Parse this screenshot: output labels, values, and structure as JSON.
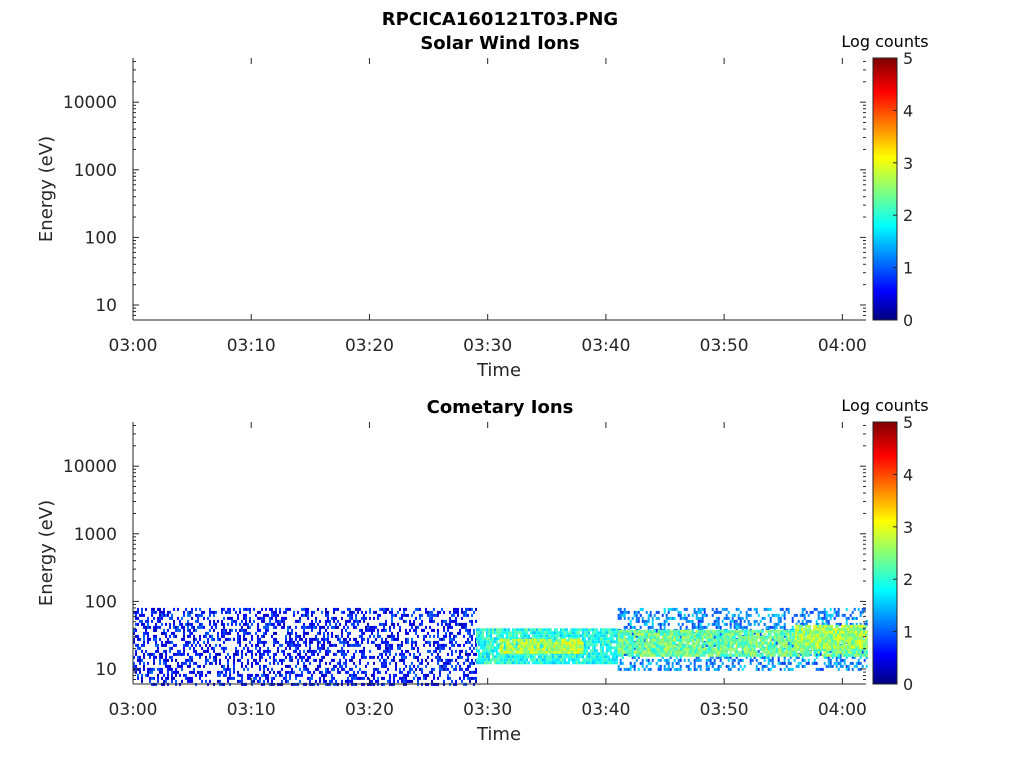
{
  "figure": {
    "title": "RPCICA160121T03.PNG"
  },
  "colormap": "jet",
  "chart_data": [
    {
      "type": "heatmap",
      "title": "Solar Wind Ions",
      "xlabel": "Time",
      "ylabel": "Energy (eV)",
      "y_scale": "log",
      "ylim": [
        6,
        45000
      ],
      "xlim": [
        "03:00",
        "04:02"
      ],
      "x_ticks": [
        "03:00",
        "03:10",
        "03:20",
        "03:30",
        "03:40",
        "03:50",
        "04:00"
      ],
      "y_ticks": [
        {
          "value": 10,
          "label": "10"
        },
        {
          "value": 100,
          "label": "100"
        },
        {
          "value": 1000,
          "label": "1000"
        },
        {
          "value": 10000,
          "label": "10000"
        }
      ],
      "colorbar": {
        "title": "Log counts",
        "range": [
          0,
          5
        ],
        "ticks": [
          "0",
          "1",
          "2",
          "3",
          "4",
          "5"
        ]
      },
      "data_segments": []
    },
    {
      "type": "heatmap",
      "title": "Cometary Ions",
      "xlabel": "Time",
      "ylabel": "Energy (eV)",
      "y_scale": "log",
      "ylim": [
        6,
        45000
      ],
      "xlim": [
        "03:00",
        "04:02"
      ],
      "x_ticks": [
        "03:00",
        "03:10",
        "03:20",
        "03:30",
        "03:40",
        "03:50",
        "04:00"
      ],
      "y_ticks": [
        {
          "value": 10,
          "label": "10"
        },
        {
          "value": 100,
          "label": "100"
        },
        {
          "value": 1000,
          "label": "1000"
        },
        {
          "value": 10000,
          "label": "10000"
        }
      ],
      "colorbar": {
        "title": "Log counts",
        "range": [
          0,
          5
        ],
        "ticks": [
          "0",
          "1",
          "2",
          "3",
          "4",
          "5"
        ]
      },
      "data_segments": [
        {
          "t_start": "03:00",
          "t_end": "03:29",
          "e_min": 6,
          "e_max": 80,
          "log_counts": 0.7,
          "fill": "sparse"
        },
        {
          "t_start": "03:29",
          "t_end": "03:41",
          "e_min": 13,
          "e_max": 40,
          "log_counts": 2.0,
          "fill": "dense"
        },
        {
          "t_start": "03:31",
          "t_end": "03:38",
          "e_min": 18,
          "e_max": 28,
          "log_counts": 2.8,
          "fill": "dense"
        },
        {
          "t_start": "03:41",
          "t_end": "04:02",
          "e_min": 10,
          "e_max": 80,
          "log_counts": 1.3,
          "fill": "sparse"
        },
        {
          "t_start": "03:41",
          "t_end": "04:02",
          "e_min": 16,
          "e_max": 38,
          "log_counts": 2.4,
          "fill": "dense"
        },
        {
          "t_start": "03:56",
          "t_end": "04:02",
          "e_min": 20,
          "e_max": 45,
          "log_counts": 2.7,
          "fill": "dense"
        }
      ]
    }
  ]
}
